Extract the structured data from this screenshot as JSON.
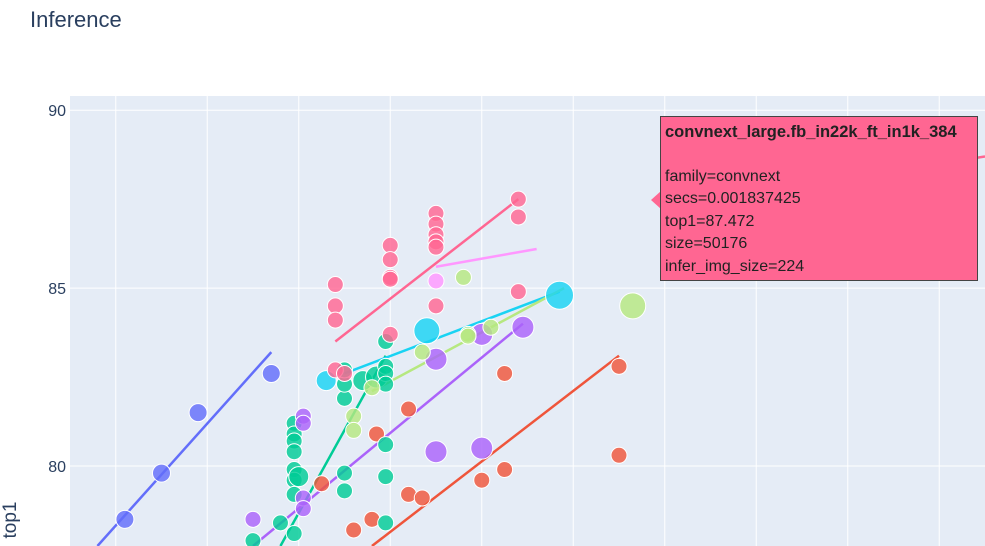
{
  "title": "Inference",
  "chart_data": {
    "type": "scatter",
    "title": "Inference",
    "xlabel": "",
    "ylabel": "top1",
    "ylim": [
      77.75,
      90.4
    ],
    "xlim": [
      0,
      1
    ],
    "y_ticks": [
      80,
      85,
      90
    ],
    "x_tick_positions": [
      0.05,
      0.15,
      0.25,
      0.35,
      0.45,
      0.55,
      0.65,
      0.75,
      0.85,
      0.95
    ],
    "grid": true,
    "series": [
      {
        "name": "blue",
        "color": "#636efa",
        "points": [
          [
            0.06,
            78.5,
            9
          ],
          [
            0.1,
            79.8,
            9
          ],
          [
            0.14,
            81.5,
            9
          ],
          [
            0.22,
            82.6,
            9
          ]
        ],
        "trend": [
          [
            0.03,
            77.75
          ],
          [
            0.22,
            83.2
          ]
        ]
      },
      {
        "name": "red",
        "color": "#ef553b",
        "points": [
          [
            0.275,
            79.5,
            8
          ],
          [
            0.31,
            78.2,
            8
          ],
          [
            0.33,
            78.5,
            8
          ],
          [
            0.335,
            80.9,
            8
          ],
          [
            0.37,
            81.6,
            8
          ],
          [
            0.37,
            79.2,
            8
          ],
          [
            0.385,
            79.1,
            8
          ],
          [
            0.45,
            79.6,
            8
          ],
          [
            0.475,
            79.9,
            8
          ],
          [
            0.475,
            82.6,
            8
          ],
          [
            0.6,
            82.8,
            8
          ],
          [
            0.6,
            80.3,
            8
          ]
        ],
        "trend": [
          [
            0.33,
            77.75
          ],
          [
            0.6,
            83.1
          ]
        ]
      },
      {
        "name": "green",
        "color": "#00cc96",
        "points": [
          [
            0.2,
            77.9,
            8
          ],
          [
            0.23,
            78.4,
            8
          ],
          [
            0.245,
            78.1,
            8
          ],
          [
            0.245,
            81.2,
            8
          ],
          [
            0.245,
            80.9,
            8
          ],
          [
            0.245,
            80.7,
            8
          ],
          [
            0.245,
            80.4,
            8
          ],
          [
            0.245,
            79.9,
            8
          ],
          [
            0.245,
            79.6,
            8
          ],
          [
            0.245,
            79.2,
            8
          ],
          [
            0.25,
            79.7,
            10
          ],
          [
            0.3,
            81.9,
            8
          ],
          [
            0.3,
            82.3,
            8
          ],
          [
            0.3,
            82.7,
            8
          ],
          [
            0.3,
            79.8,
            8
          ],
          [
            0.3,
            79.3,
            8
          ],
          [
            0.32,
            82.4,
            10
          ],
          [
            0.335,
            82.5,
            11
          ],
          [
            0.345,
            82.8,
            8
          ],
          [
            0.345,
            82.6,
            8
          ],
          [
            0.345,
            82.3,
            8
          ],
          [
            0.345,
            83.5,
            8
          ],
          [
            0.345,
            80.6,
            8
          ],
          [
            0.345,
            79.7,
            8
          ],
          [
            0.345,
            78.4,
            8
          ]
        ],
        "trend": [
          [
            0.23,
            77.75
          ],
          [
            0.345,
            83.1
          ]
        ]
      },
      {
        "name": "purple",
        "color": "#ab63fa",
        "points": [
          [
            0.2,
            78.5,
            8
          ],
          [
            0.255,
            81.4,
            8
          ],
          [
            0.255,
            81.2,
            8
          ],
          [
            0.255,
            79.1,
            8
          ],
          [
            0.255,
            78.8,
            8
          ],
          [
            0.4,
            80.4,
            11
          ],
          [
            0.4,
            83.0,
            11
          ],
          [
            0.45,
            80.5,
            11
          ],
          [
            0.45,
            83.7,
            11
          ],
          [
            0.495,
            83.9,
            11
          ]
        ],
        "trend": [
          [
            0.2,
            77.75
          ],
          [
            0.495,
            84.0
          ]
        ]
      },
      {
        "name": "orange",
        "color": "#ffa15a",
        "points": [],
        "trend": []
      },
      {
        "name": "cyan",
        "color": "#19d3f3",
        "points": [
          [
            0.28,
            82.4,
            10
          ],
          [
            0.39,
            83.8,
            13
          ],
          [
            0.535,
            84.8,
            14
          ]
        ],
        "trend": [
          [
            0.3,
            82.6
          ],
          [
            0.535,
            84.9
          ]
        ]
      },
      {
        "name": "pink",
        "color": "#ff6692",
        "points": [
          [
            0.29,
            85.1,
            8
          ],
          [
            0.29,
            84.5,
            8
          ],
          [
            0.29,
            84.1,
            8
          ],
          [
            0.29,
            82.7,
            8
          ],
          [
            0.3,
            82.6,
            8
          ],
          [
            0.35,
            86.2,
            8
          ],
          [
            0.35,
            85.8,
            8
          ],
          [
            0.35,
            85.3,
            8
          ],
          [
            0.35,
            85.25,
            8
          ],
          [
            0.35,
            83.7,
            8
          ],
          [
            0.4,
            87.1,
            8
          ],
          [
            0.4,
            86.8,
            8
          ],
          [
            0.4,
            86.5,
            8
          ],
          [
            0.4,
            86.3,
            8
          ],
          [
            0.4,
            86.15,
            8
          ],
          [
            0.4,
            84.5,
            8
          ],
          [
            0.49,
            87.5,
            8
          ],
          [
            0.49,
            87.0,
            8
          ],
          [
            0.49,
            84.9,
            8
          ]
        ],
        "trend": [
          [
            0.29,
            83.5
          ],
          [
            0.49,
            87.5
          ]
        ]
      },
      {
        "name": "lime",
        "color": "#b6e880",
        "points": [
          [
            0.31,
            81.4,
            8
          ],
          [
            0.31,
            81.0,
            8
          ],
          [
            0.33,
            82.2,
            8
          ],
          [
            0.385,
            83.2,
            8
          ],
          [
            0.43,
            85.3,
            8
          ],
          [
            0.435,
            83.7,
            8
          ],
          [
            0.435,
            83.65,
            8
          ],
          [
            0.46,
            83.9,
            8
          ],
          [
            0.615,
            84.5,
            13
          ]
        ],
        "trend": [
          [
            0.33,
            82.1
          ],
          [
            0.54,
            85.0
          ]
        ]
      },
      {
        "name": "magenta",
        "color": "#ff97ff",
        "points": [
          [
            0.4,
            85.2,
            8
          ]
        ],
        "trend": [
          [
            0.4,
            85.6
          ],
          [
            0.51,
            86.1
          ]
        ]
      }
    ],
    "hover_trend": {
      "color": "#ff6692",
      "points": [
        [
          0.9,
          88.3
        ],
        [
          1.0,
          88.7
        ]
      ]
    },
    "tooltip": {
      "title": "convnext_large.fb_in22k_ft_in1k_384",
      "lines": [
        "family=convnext",
        "secs=0.001837425",
        "top1=87.472",
        "size=50176",
        "infer_img_size=224"
      ],
      "color": "#ff6692"
    }
  }
}
